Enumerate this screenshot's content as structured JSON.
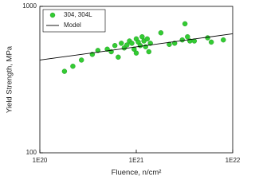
{
  "chart_data": {
    "type": "scatter",
    "x_label": "Fluence, n/cm²",
    "y_label": "Yield Strength, MPa",
    "xlim": [
      1e+20,
      1e+22
    ],
    "ylim": [
      100,
      1000
    ],
    "xticks": [
      {
        "value": 1e+20,
        "label": "1E20"
      },
      {
        "value": 1e+21,
        "label": "1E21"
      },
      {
        "value": 1e+22,
        "label": "1E22"
      }
    ],
    "yticks": [
      100,
      1000
    ],
    "x_scale": "log",
    "y_scale": "log",
    "legend": "upper left",
    "series": [
      {
        "name": "304, 304L",
        "type": "scatter",
        "color": "#33cc33",
        "x": [
          1.8e+20,
          2.2e+20,
          2.7e+20,
          3.5e+20,
          4e+20,
          5e+20,
          5.5e+20,
          6e+20,
          6.5e+20,
          7e+20,
          7.5e+20,
          8e+20,
          8.5e+20,
          9e+20,
          9.5e+20,
          1e+21,
          1e+21,
          1.05e+21,
          1.1e+21,
          1.15e+21,
          1.2e+21,
          1.25e+21,
          1.3e+21,
          1.35e+21,
          1.4e+21,
          1.8e+21,
          2.2e+21,
          2.5e+21,
          3e+21,
          3.2e+21,
          3.4e+21,
          3.6e+21,
          4e+21,
          5.5e+21,
          6e+21,
          8e+21
        ],
        "values": [
          360,
          390,
          430,
          470,
          500,
          510,
          490,
          540,
          450,
          560,
          520,
          545,
          580,
          560,
          510,
          600,
          480,
          570,
          540,
          620,
          580,
          530,
          600,
          490,
          560,
          660,
          550,
          560,
          590,
          760,
          620,
          580,
          580,
          610,
          570,
          590
        ]
      },
      {
        "name": "Model",
        "type": "line",
        "color": "#000000",
        "x": [
          1e+20,
          1e+22
        ],
        "values": [
          430,
          650
        ]
      }
    ]
  }
}
